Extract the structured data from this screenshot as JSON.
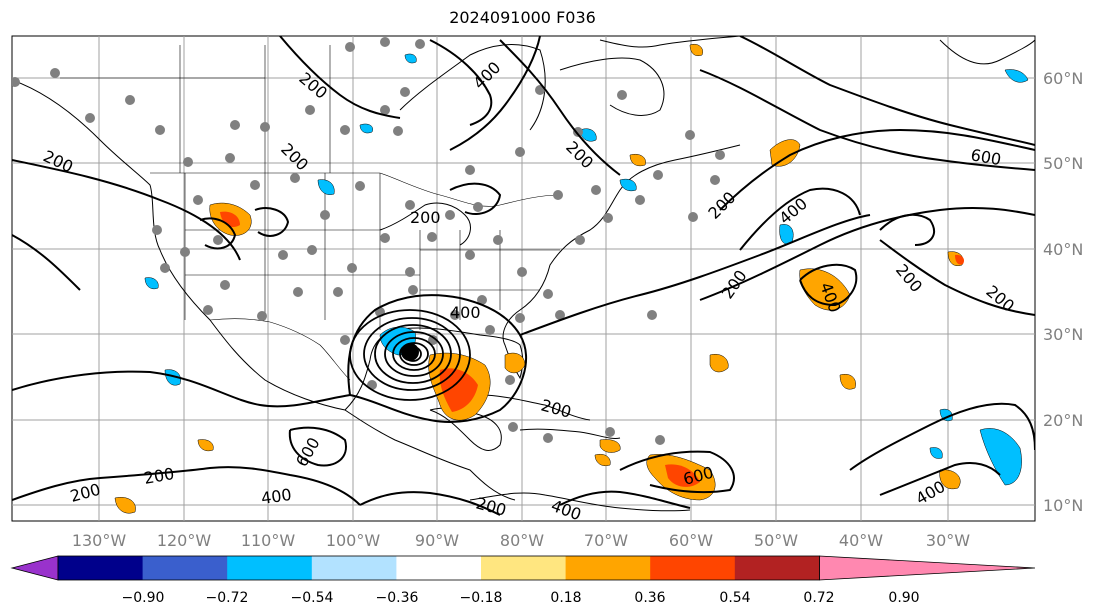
{
  "title": "2024091000 F036",
  "longitude_labels": [
    "130°W",
    "120°W",
    "110°W",
    "100°W",
    "90°W",
    "80°W",
    "70°W",
    "60°W",
    "50°W",
    "40°W",
    "30°W"
  ],
  "latitude_labels": [
    "60°N",
    "50°N",
    "40°N",
    "30°N",
    "20°N",
    "10°N"
  ],
  "colorbar": {
    "tick_labels": [
      "−0.90",
      "−0.72",
      "−0.54",
      "−0.36",
      "−0.18",
      "0.18",
      "0.36",
      "0.54",
      "0.72",
      "0.90"
    ],
    "colors": [
      "#9932cc",
      "#00008b",
      "#3a5fcd",
      "#00bfff",
      "#b2e2ff",
      "#ffffff",
      "#ffe680",
      "#ffa500",
      "#ff4500",
      "#b22222",
      "#ff88b0"
    ]
  },
  "contour_labels": [
    "200",
    "200",
    "200",
    "200",
    "200",
    "200",
    "200",
    "200",
    "200",
    "200",
    "200",
    "200",
    "200",
    "400",
    "400",
    "400",
    "400",
    "400",
    "400",
    "400",
    "600",
    "600",
    "600"
  ],
  "storm_center_label": "",
  "colors": {
    "positive": "#ffa500",
    "strong_positive": "#ff4500",
    "negative": "#00bfff",
    "station": "#808080",
    "contour": "#000000"
  }
}
